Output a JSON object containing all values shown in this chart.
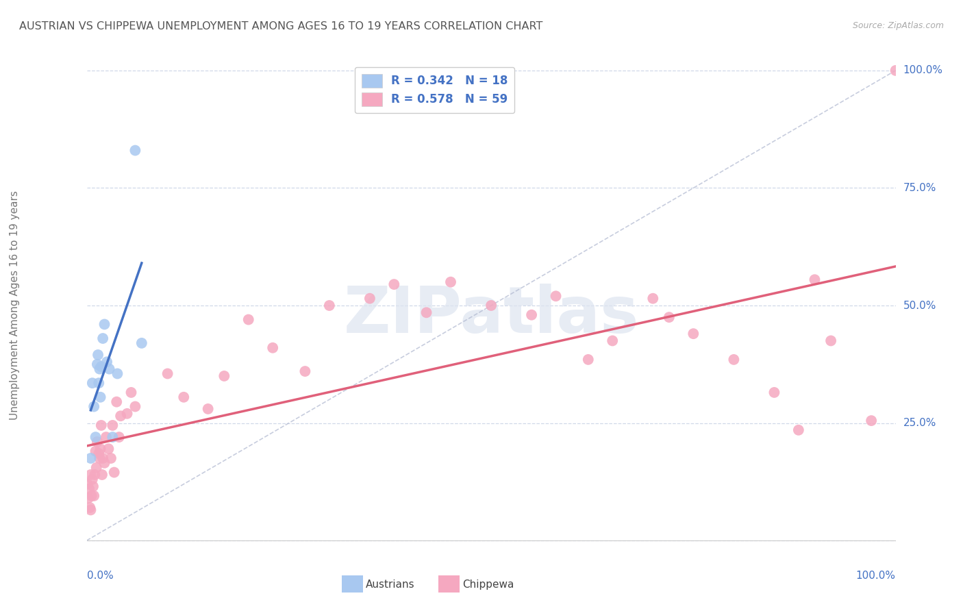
{
  "title": "AUSTRIAN VS CHIPPEWA UNEMPLOYMENT AMONG AGES 16 TO 19 YEARS CORRELATION CHART",
  "source": "Source: ZipAtlas.com",
  "ylabel": "Unemployment Among Ages 16 to 19 years",
  "xrange": [
    0.0,
    1.0
  ],
  "yrange": [
    0.0,
    1.0
  ],
  "ytick_vals": [
    0.0,
    0.25,
    0.5,
    0.75,
    1.0
  ],
  "ytick_labels": [
    "",
    "25.0%",
    "50.0%",
    "75.0%",
    "100.0%"
  ],
  "austrians_R": 0.342,
  "austrians_N": 18,
  "chippewa_R": 0.578,
  "chippewa_N": 59,
  "color_austrians": "#a8c8f0",
  "color_chippewa": "#f5a8c0",
  "color_line_austrians": "#4472c4",
  "color_line_chippewa": "#e0607a",
  "color_diag": "#b0b8d0",
  "color_axis_text": "#4472c4",
  "color_grid": "#d0d8e8",
  "background": "#ffffff",
  "watermark_text": "ZIPatlas",
  "watermark_color": "#dde4f0",
  "austrians_x": [
    0.005,
    0.007,
    0.009,
    0.011,
    0.013,
    0.014,
    0.015,
    0.016,
    0.017,
    0.018,
    0.02,
    0.022,
    0.025,
    0.028,
    0.032,
    0.038,
    0.06,
    0.068
  ],
  "austrians_y": [
    0.175,
    0.335,
    0.285,
    0.22,
    0.375,
    0.395,
    0.335,
    0.365,
    0.305,
    0.37,
    0.43,
    0.46,
    0.38,
    0.365,
    0.22,
    0.355,
    0.83,
    0.42
  ],
  "chippewa_x": [
    0.001,
    0.002,
    0.003,
    0.004,
    0.005,
    0.005,
    0.006,
    0.007,
    0.008,
    0.009,
    0.01,
    0.011,
    0.012,
    0.013,
    0.015,
    0.016,
    0.017,
    0.018,
    0.019,
    0.02,
    0.022,
    0.024,
    0.027,
    0.03,
    0.032,
    0.034,
    0.037,
    0.04,
    0.042,
    0.05,
    0.055,
    0.06,
    0.1,
    0.12,
    0.15,
    0.17,
    0.2,
    0.23,
    0.27,
    0.3,
    0.35,
    0.38,
    0.42,
    0.45,
    0.5,
    0.55,
    0.58,
    0.62,
    0.65,
    0.7,
    0.72,
    0.75,
    0.8,
    0.85,
    0.88,
    0.9,
    0.92,
    0.97,
    1.0
  ],
  "chippewa_y": [
    0.12,
    0.09,
    0.11,
    0.07,
    0.065,
    0.14,
    0.095,
    0.13,
    0.115,
    0.095,
    0.14,
    0.19,
    0.155,
    0.21,
    0.185,
    0.175,
    0.195,
    0.245,
    0.14,
    0.175,
    0.165,
    0.22,
    0.195,
    0.175,
    0.245,
    0.145,
    0.295,
    0.22,
    0.265,
    0.27,
    0.315,
    0.285,
    0.355,
    0.305,
    0.28,
    0.35,
    0.47,
    0.41,
    0.36,
    0.5,
    0.515,
    0.545,
    0.485,
    0.55,
    0.5,
    0.48,
    0.52,
    0.385,
    0.425,
    0.515,
    0.475,
    0.44,
    0.385,
    0.315,
    0.235,
    0.555,
    0.425,
    0.255,
    1.0
  ]
}
